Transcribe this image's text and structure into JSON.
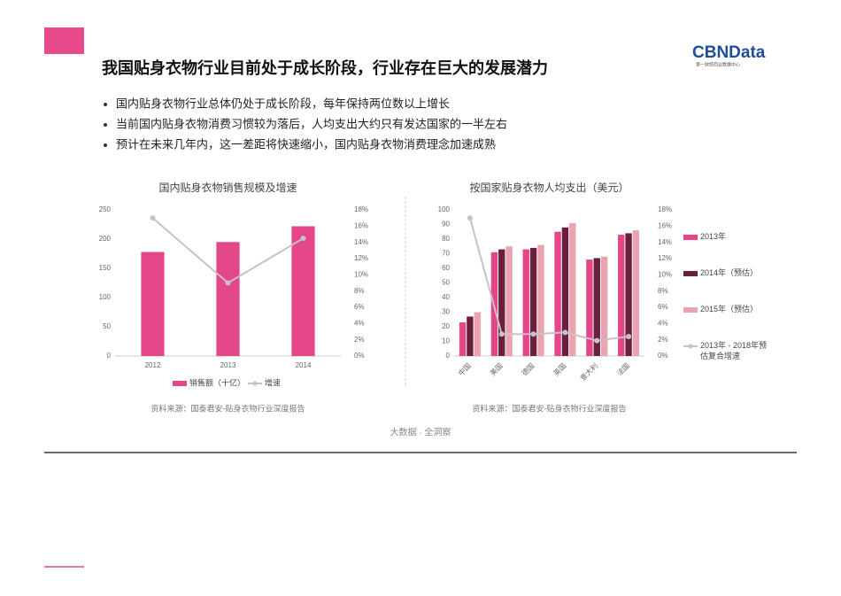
{
  "title": "我国贴身衣物行业目前处于成长阶段，行业存在巨大的发展潜力",
  "logo": {
    "name": "CBNData",
    "subtitle": "第一财经商业数据中心"
  },
  "bullets": [
    "国内贴身衣物行业总体仍处于成长阶段，每年保持两位数以上增长",
    "当前国内贴身衣物消费习惯较为落后，人均支出大约只有发达国家的一半左右",
    "预计在未来几年内，这一差距将快速缩小，国内贴身衣物消费理念加速成熟"
  ],
  "footer": "大数据 · 全洞察",
  "chart_data": [
    {
      "type": "bar",
      "title": "国内贴身衣物销售规模及增速",
      "source": "资料来源：国泰君安-贴身衣物行业深度报告",
      "categories": [
        "2012",
        "2013",
        "2014"
      ],
      "series": [
        {
          "name": "销售额（十亿）",
          "color": "#e4468a",
          "values": [
            178,
            195,
            222
          ]
        },
        {
          "name": "增速",
          "color": "#c9c0cb",
          "type": "line",
          "axis": "y2",
          "values": [
            17,
            9,
            14.5
          ]
        }
      ],
      "ylim": [
        0,
        250
      ],
      "yticks": [
        0,
        50,
        100,
        150,
        200,
        250
      ],
      "y2lim": [
        0,
        18
      ],
      "y2ticks": [
        {
          "value": 0,
          "label": "0%"
        },
        {
          "value": 2,
          "label": "2%"
        },
        {
          "value": 4,
          "label": "4%"
        },
        {
          "value": 6,
          "label": "6%"
        },
        {
          "value": 8,
          "label": "8%"
        },
        {
          "value": 10,
          "label": "10%"
        },
        {
          "value": 12,
          "label": "12%"
        },
        {
          "value": 14,
          "label": "14%"
        },
        {
          "value": 16,
          "label": "16%"
        },
        {
          "value": 18,
          "label": "18%"
        }
      ],
      "legend": "bottom"
    },
    {
      "type": "bar",
      "title": "按国家贴身衣物人均支出（美元）",
      "source": "资料来源：国泰君安-贴身衣物行业深度报告",
      "categories": [
        "中国",
        "美国",
        "德国",
        "英国",
        "意大利",
        "法国"
      ],
      "series": [
        {
          "name": "2013年",
          "color": "#e4468a",
          "values": [
            23,
            71,
            73,
            85,
            66,
            83
          ]
        },
        {
          "name": "2014年（预估）",
          "color": "#6b1f3d",
          "values": [
            27,
            73,
            74,
            88,
            67,
            84
          ]
        },
        {
          "name": "2015年（预估）",
          "color": "#eba3b1",
          "values": [
            30,
            75,
            76,
            91,
            68,
            86
          ]
        },
        {
          "name": "2013年 - 2018年预估复合增速",
          "color": "#c9c0cb",
          "type": "line",
          "axis": "y2",
          "values": [
            17,
            2.7,
            2.7,
            2.9,
            1.9,
            2.4
          ]
        }
      ],
      "ylim": [
        0,
        100
      ],
      "yticks": [
        0,
        10,
        20,
        30,
        40,
        50,
        60,
        70,
        80,
        90,
        100
      ],
      "y2lim": [
        0,
        18
      ],
      "y2ticks": [
        {
          "value": 0,
          "label": "0%"
        },
        {
          "value": 2,
          "label": "2%"
        },
        {
          "value": 4,
          "label": "4%"
        },
        {
          "value": 6,
          "label": "6%"
        },
        {
          "value": 8,
          "label": "8%"
        },
        {
          "value": 10,
          "label": "10%"
        },
        {
          "value": 12,
          "label": "12%"
        },
        {
          "value": 14,
          "label": "14%"
        },
        {
          "value": 16,
          "label": "16%"
        },
        {
          "value": 18,
          "label": "18%"
        }
      ],
      "legend": "right"
    }
  ]
}
